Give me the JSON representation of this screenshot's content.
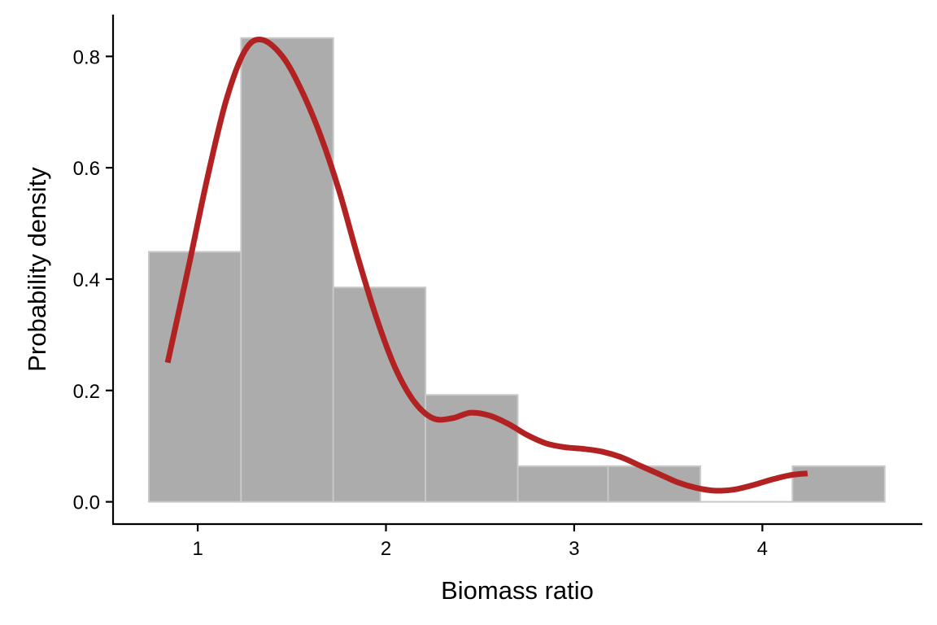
{
  "chart_data": {
    "type": "bar",
    "title": "",
    "xlabel": "Biomass ratio",
    "ylabel": "Probability density",
    "xlim": [
      0.55,
      4.85
    ],
    "ylim": [
      -0.04,
      0.875
    ],
    "x_ticks": [
      1,
      2,
      3,
      4
    ],
    "x_tick_labels": [
      "1",
      "2",
      "3",
      "4"
    ],
    "y_ticks": [
      0.0,
      0.2,
      0.4,
      0.6,
      0.8
    ],
    "y_tick_labels": [
      "0.0",
      "0.2",
      "0.4",
      "0.6",
      "0.8"
    ],
    "grid": false,
    "legend": "none",
    "histogram": {
      "bins": [
        {
          "x0": 0.74,
          "x1": 1.23,
          "density": 0.449
        },
        {
          "x0": 1.23,
          "x1": 1.72,
          "density": 0.833
        },
        {
          "x0": 1.72,
          "x1": 2.21,
          "density": 0.385
        },
        {
          "x0": 2.21,
          "x1": 2.7,
          "density": 0.192
        },
        {
          "x0": 2.7,
          "x1": 3.18,
          "density": 0.064
        },
        {
          "x0": 3.18,
          "x1": 3.67,
          "density": 0.064
        },
        {
          "x0": 3.67,
          "x1": 4.16,
          "density": 0.0
        },
        {
          "x0": 4.16,
          "x1": 4.65,
          "density": 0.064
        }
      ],
      "fill": "#acacac",
      "stroke": "#c8c8c8"
    },
    "density_curve": {
      "color": "#b22222",
      "x": [
        0.84,
        0.95,
        1.05,
        1.15,
        1.25,
        1.34,
        1.45,
        1.55,
        1.65,
        1.75,
        1.85,
        1.95,
        2.05,
        2.15,
        2.25,
        2.35,
        2.45,
        2.55,
        2.65,
        2.75,
        2.85,
        2.95,
        3.05,
        3.15,
        3.25,
        3.35,
        3.45,
        3.55,
        3.65,
        3.75,
        3.85,
        3.95,
        4.05,
        4.15,
        4.24
      ],
      "y": [
        0.25,
        0.42,
        0.58,
        0.72,
        0.81,
        0.83,
        0.8,
        0.74,
        0.66,
        0.56,
        0.44,
        0.33,
        0.24,
        0.18,
        0.15,
        0.15,
        0.16,
        0.155,
        0.14,
        0.12,
        0.105,
        0.098,
        0.095,
        0.09,
        0.08,
        0.065,
        0.05,
        0.035,
        0.025,
        0.02,
        0.022,
        0.03,
        0.04,
        0.048,
        0.051
      ]
    }
  }
}
